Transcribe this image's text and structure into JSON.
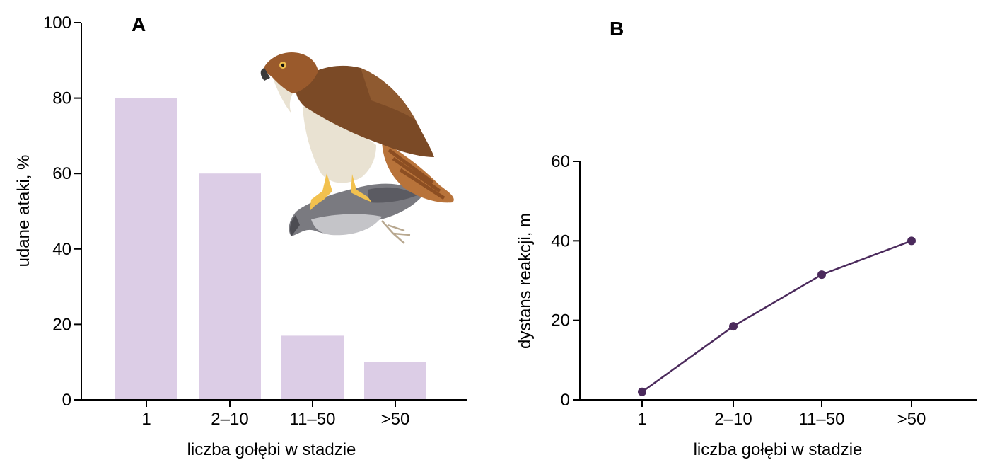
{
  "chart_data": [
    {
      "type": "bar",
      "panel_label": "A",
      "categories": [
        "1",
        "2–10",
        "11–50",
        ">50"
      ],
      "values": [
        80,
        60,
        17,
        10
      ],
      "xlabel": "liczba gołębi w stadzie",
      "ylabel": "udane ataki, %",
      "ylim": [
        0,
        100
      ],
      "yticks": [
        "0",
        "20",
        "40",
        "60",
        "80",
        "100"
      ],
      "bar_color": "#dccde6",
      "illustration": "hawk-on-pigeon"
    },
    {
      "type": "line",
      "panel_label": "B",
      "categories": [
        "1",
        "2–10",
        "11–50",
        ">50"
      ],
      "values": [
        2,
        18.5,
        31.5,
        40
      ],
      "xlabel": "liczba gołębi w stadzie",
      "ylabel": "dystans reakcji, m",
      "ylim": [
        0,
        60
      ],
      "yticks": [
        "0",
        "20",
        "40",
        "60"
      ],
      "line_color": "#4b2a5c"
    }
  ]
}
